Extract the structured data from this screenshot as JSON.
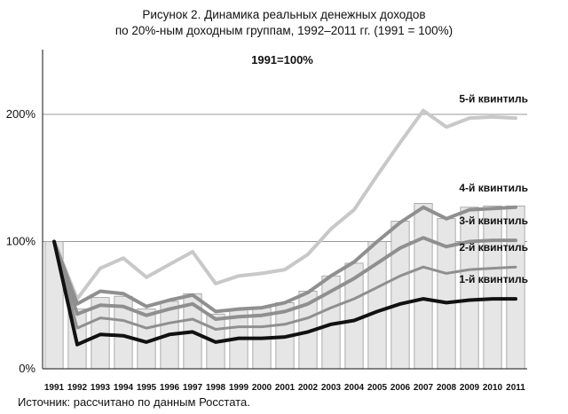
{
  "title": {
    "line1": "Рисунок 2.   Динамика реальных денежных доходов",
    "line2": "по 20%-ным доходным группам, 1992–2011 гг. (1991 = 100%)"
  },
  "source": "Источник:   рассчитано по данным Росстата.",
  "chart_data": {
    "type": "bar+line",
    "annotation": "1991=100%",
    "categories": [
      "1991",
      "1992",
      "1993",
      "1994",
      "1995",
      "1996",
      "1997",
      "1998",
      "1999",
      "2000",
      "2001",
      "2002",
      "2003",
      "2004",
      "2005",
      "2006",
      "2007",
      "2008",
      "2009",
      "2010",
      "2011"
    ],
    "y_ticks": [
      {
        "value": 0,
        "label": "0%"
      },
      {
        "value": 100,
        "label": "100%"
      },
      {
        "value": 200,
        "label": "200%"
      }
    ],
    "ylim": [
      0,
      250
    ],
    "grid": "horizontal at 100% and 200%",
    "bars": {
      "values": [
        100,
        47,
        56,
        57,
        47,
        53,
        59,
        43,
        47,
        48,
        52,
        61,
        73,
        83,
        100,
        116,
        130,
        118,
        127,
        128,
        128
      ],
      "color": "#e6e6e6",
      "edge": "#9a9a9a"
    },
    "series": [
      {
        "name": "5-й квинтиль",
        "color": "#c8c8c8",
        "width": 4,
        "values": [
          100,
          55,
          79,
          87,
          72,
          82,
          92,
          67,
          73,
          75,
          78,
          90,
          110,
          125,
          152,
          178,
          203,
          190,
          197,
          198,
          197
        ]
      },
      {
        "name": "4-й квинтиль",
        "color": "#8f8f8f",
        "width": 4,
        "values": [
          100,
          51,
          61,
          59,
          49,
          54,
          58,
          45,
          47,
          48,
          52,
          60,
          73,
          84,
          100,
          115,
          127,
          118,
          125,
          126,
          127
        ]
      },
      {
        "name": "3-й квинтиль",
        "color": "#8f8f8f",
        "width": 4,
        "values": [
          100,
          43,
          50,
          49,
          42,
          47,
          51,
          39,
          41,
          42,
          45,
          51,
          61,
          71,
          83,
          95,
          103,
          96,
          100,
          101,
          101
        ]
      },
      {
        "name": "2-й квинтиль",
        "color": "#8f8f8f",
        "width": 3,
        "values": [
          100,
          32,
          40,
          38,
          32,
          36,
          39,
          31,
          33,
          33,
          35,
          40,
          48,
          55,
          64,
          73,
          80,
          75,
          78,
          79,
          80
        ]
      },
      {
        "name": "1-й квинтиль",
        "color": "#111111",
        "width": 4,
        "values": [
          100,
          19,
          27,
          26,
          21,
          27,
          29,
          21,
          24,
          24,
          25,
          29,
          35,
          38,
          45,
          51,
          55,
          52,
          54,
          55,
          55
        ]
      }
    ]
  }
}
